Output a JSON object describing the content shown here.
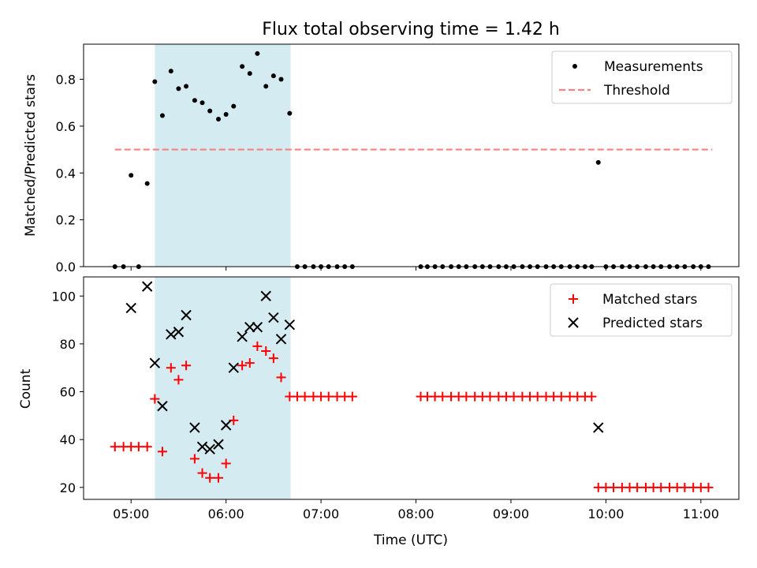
{
  "chart_data": [
    {
      "type": "scatter",
      "title": "Flux total observing time = 1.42 h",
      "ylabel": "Matched/Predicted stars",
      "xlim": [
        4.5,
        11.4
      ],
      "ylim": [
        0,
        0.95
      ],
      "yticks": [
        0.0,
        0.2,
        0.4,
        0.6,
        0.8
      ],
      "ytick_labels": [
        "0.0",
        "0.2",
        "0.4",
        "0.6",
        "0.8"
      ],
      "xticks": [
        5,
        6,
        7,
        8,
        9,
        10,
        11
      ],
      "shaded_span": [
        5.25,
        6.68
      ],
      "shade_color": "#d4ebf1",
      "legend": {
        "placement": "top-right",
        "entries": [
          "Measurements",
          "Threshold"
        ]
      },
      "threshold": {
        "name": "Threshold",
        "y": 0.5,
        "x": [
          4.83,
          11.12
        ],
        "color": "#ff7f7f"
      },
      "series": [
        {
          "name": "Measurements",
          "color": "#000000",
          "x": [
            4.83,
            4.92,
            5.0,
            5.08,
            5.17,
            5.25,
            5.33,
            5.42,
            5.5,
            5.58,
            5.67,
            5.75,
            5.83,
            5.92,
            6.0,
            6.08,
            6.17,
            6.25,
            6.33,
            6.42,
            6.5,
            6.58,
            6.67,
            6.75,
            6.83,
            6.92,
            7.0,
            7.08,
            7.17,
            7.25,
            7.33,
            8.05,
            8.12,
            8.2,
            8.28,
            8.37,
            8.45,
            8.53,
            8.62,
            8.7,
            8.78,
            8.87,
            8.95,
            9.03,
            9.12,
            9.2,
            9.28,
            9.37,
            9.45,
            9.53,
            9.62,
            9.7,
            9.78,
            9.85,
            9.92,
            10.0,
            10.08,
            10.17,
            10.25,
            10.33,
            10.42,
            10.5,
            10.58,
            10.67,
            10.75,
            10.83,
            10.92,
            11.0,
            11.08
          ],
          "y": [
            0,
            0,
            0.39,
            0,
            0.355,
            0.79,
            0.645,
            0.835,
            0.76,
            0.77,
            0.71,
            0.7,
            0.665,
            0.63,
            0.65,
            0.685,
            0.855,
            0.825,
            0.91,
            0.77,
            0.815,
            0.8,
            0.655,
            0,
            0,
            0,
            0,
            0,
            0,
            0,
            0,
            0,
            0,
            0,
            0,
            0,
            0,
            0,
            0,
            0,
            0,
            0,
            0,
            0,
            0,
            0,
            0,
            0,
            0,
            0,
            0,
            0,
            0,
            0,
            0.445,
            0,
            0,
            0,
            0,
            0,
            0,
            0,
            0,
            0,
            0,
            0,
            0,
            0,
            0
          ]
        }
      ]
    },
    {
      "type": "scatter",
      "xlabel": "Time (UTC)",
      "ylabel": "Count",
      "xlim": [
        4.5,
        11.4
      ],
      "ylim": [
        15,
        108
      ],
      "yticks": [
        20,
        40,
        60,
        80,
        100
      ],
      "ytick_labels": [
        "20",
        "40",
        "60",
        "80",
        "100"
      ],
      "xticks": [
        5,
        6,
        7,
        8,
        9,
        10,
        11
      ],
      "xtick_labels": [
        "05:00",
        "06:00",
        "07:00",
        "08:00",
        "09:00",
        "10:00",
        "11:00"
      ],
      "shaded_span": [
        5.25,
        6.68
      ],
      "shade_color": "#d4ebf1",
      "legend": {
        "placement": "top-right",
        "entries": [
          "Matched stars",
          "Predicted stars"
        ]
      },
      "series": [
        {
          "name": "Matched stars",
          "marker": "plus",
          "color": "#ff0000",
          "x": [
            4.83,
            4.92,
            5.0,
            5.08,
            5.17,
            5.25,
            5.33,
            5.42,
            5.5,
            5.58,
            5.67,
            5.75,
            5.83,
            5.92,
            6.0,
            6.08,
            6.17,
            6.25,
            6.33,
            6.42,
            6.5,
            6.58,
            6.67,
            6.75,
            6.83,
            6.92,
            7.0,
            7.08,
            7.17,
            7.25,
            7.33,
            8.05,
            8.12,
            8.2,
            8.28,
            8.37,
            8.45,
            8.53,
            8.62,
            8.7,
            8.78,
            8.87,
            8.95,
            9.03,
            9.12,
            9.2,
            9.28,
            9.37,
            9.45,
            9.53,
            9.62,
            9.7,
            9.78,
            9.85,
            9.92,
            10.0,
            10.08,
            10.17,
            10.25,
            10.33,
            10.42,
            10.5,
            10.58,
            10.67,
            10.75,
            10.83,
            10.92,
            11.0,
            11.08
          ],
          "y": [
            37,
            37,
            37,
            37,
            37,
            57,
            35,
            70,
            65,
            71,
            32,
            26,
            24,
            24,
            30,
            48,
            71,
            72,
            79,
            77,
            74,
            66,
            58,
            58,
            58,
            58,
            58,
            58,
            58,
            58,
            58,
            58,
            58,
            58,
            58,
            58,
            58,
            58,
            58,
            58,
            58,
            58,
            58,
            58,
            58,
            58,
            58,
            58,
            58,
            58,
            58,
            58,
            58,
            58,
            20,
            20,
            20,
            20,
            20,
            20,
            20,
            20,
            20,
            20,
            20,
            20,
            20,
            20,
            20
          ]
        },
        {
          "name": "Predicted stars",
          "marker": "x",
          "color": "#000000",
          "x": [
            5.0,
            5.17,
            5.25,
            5.33,
            5.42,
            5.5,
            5.58,
            5.67,
            5.75,
            5.83,
            5.92,
            6.0,
            6.08,
            6.17,
            6.25,
            6.33,
            6.42,
            6.5,
            6.58,
            6.67,
            9.92
          ],
          "y": [
            95,
            104,
            72,
            54,
            84,
            85,
            92,
            45,
            37,
            36,
            38,
            46,
            70,
            83,
            87,
            87,
            100,
            91,
            82,
            88,
            45
          ]
        }
      ]
    }
  ]
}
